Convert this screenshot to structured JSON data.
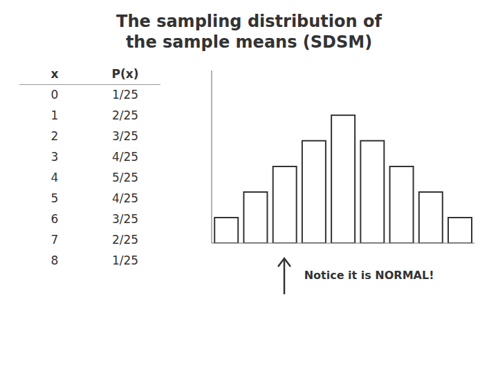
{
  "chart_data": {
    "type": "bar",
    "title": "The sampling distribution of\nthe sample means (SDSM)",
    "categories": [
      null,
      null,
      null,
      null,
      null,
      null,
      null,
      null,
      null
    ],
    "values": [
      1,
      2,
      3,
      4,
      5,
      4,
      3,
      2,
      1
    ],
    "color": "#ffffff",
    "ylim": [
      0,
      6.75
    ],
    "yticks": [],
    "grid": false,
    "tick_labels": false,
    "table": [
      [
        "x",
        "P(x)"
      ],
      [
        "0",
        "1/25"
      ],
      [
        "1",
        "2/25"
      ],
      [
        "2",
        "3/25"
      ],
      [
        "3",
        "4/25"
      ],
      [
        "4",
        "5/25"
      ],
      [
        "5",
        "4/25"
      ],
      [
        "6",
        "3/25"
      ],
      [
        "7",
        "2/25"
      ],
      [
        "8",
        "1/25"
      ]
    ],
    "annotations": [
      "Notice it is NORMAL!"
    ]
  }
}
